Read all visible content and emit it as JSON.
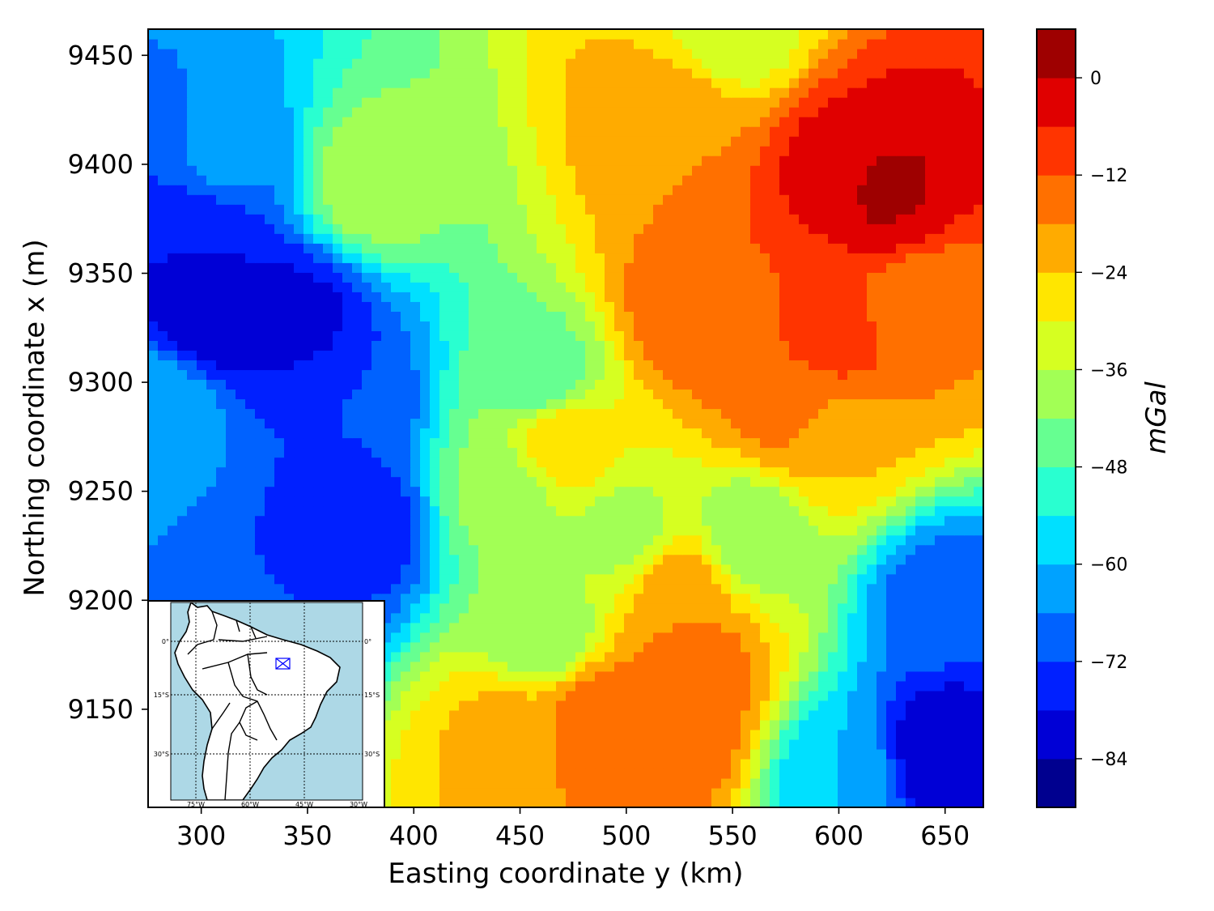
{
  "chart_data": {
    "type": "heatmap",
    "title": "",
    "xlabel": "Easting coordinate y (km)",
    "ylabel": "Northing coordinate x (m)",
    "xlim": [
      275,
      668
    ],
    "ylim": [
      9105,
      9462
    ],
    "xticks": [
      300,
      350,
      400,
      450,
      500,
      550,
      600,
      650
    ],
    "yticks": [
      9150,
      9200,
      9250,
      9300,
      9350,
      9400,
      9450
    ],
    "grid": false,
    "colorbar": {
      "label": "mGal",
      "range": [
        -90,
        6
      ],
      "levels": [
        -90,
        -84,
        -78,
        -72,
        -66,
        -60,
        -54,
        -48,
        -42,
        -36,
        -30,
        -24,
        -18,
        -12,
        -6,
        0,
        6
      ],
      "ticks": [
        -84,
        -72,
        -60,
        -48,
        -36,
        -24,
        -12,
        0
      ],
      "tick_labels": [
        "−84",
        "−72",
        "−60",
        "−48",
        "−36",
        "−24",
        "−12",
        "0"
      ],
      "colors": [
        "#00008f",
        "#0000d6",
        "#0020ff",
        "#0062ff",
        "#00a2ff",
        "#00e0ff",
        "#29ffd0",
        "#66ff91",
        "#a2ff55",
        "#d6ff21",
        "#ffe600",
        "#ffab00",
        "#ff7000",
        "#ff3400",
        "#e00000",
        "#9e0000"
      ]
    },
    "anomalies": [
      {
        "y": 380,
        "x": 9390,
        "value": -38
      },
      {
        "y": 600,
        "x": 9400,
        "value": -4
      },
      {
        "y": 620,
        "x": 9390,
        "value": 1
      },
      {
        "y": 525,
        "x": 9420,
        "value": -18
      },
      {
        "y": 440,
        "x": 9250,
        "value": -40
      },
      {
        "y": 500,
        "x": 9230,
        "value": -38
      },
      {
        "y": 345,
        "x": 9330,
        "value": -80
      },
      {
        "y": 305,
        "x": 9330,
        "value": -83
      },
      {
        "y": 300,
        "x": 9370,
        "value": -78
      },
      {
        "y": 375,
        "x": 9235,
        "value": -78
      },
      {
        "y": 350,
        "x": 9220,
        "value": -72
      },
      {
        "y": 280,
        "x": 9290,
        "value": -60
      },
      {
        "y": 310,
        "x": 9400,
        "value": -65
      },
      {
        "y": 370,
        "x": 9290,
        "value": -72
      },
      {
        "y": 570,
        "x": 9330,
        "value": -12
      },
      {
        "y": 600,
        "x": 9320,
        "value": -10
      },
      {
        "y": 530,
        "x": 9330,
        "value": -14
      },
      {
        "y": 640,
        "x": 9330,
        "value": -18
      },
      {
        "y": 580,
        "x": 9290,
        "value": -12
      },
      {
        "y": 485,
        "x": 9145,
        "value": -12
      },
      {
        "y": 525,
        "x": 9140,
        "value": -13
      },
      {
        "y": 530,
        "x": 9170,
        "value": -14
      },
      {
        "y": 525,
        "x": 9205,
        "value": -20
      },
      {
        "y": 460,
        "x": 9300,
        "value": -47
      },
      {
        "y": 650,
        "x": 9130,
        "value": -84
      },
      {
        "y": 650,
        "x": 9200,
        "value": -70
      },
      {
        "y": 600,
        "x": 9120,
        "value": -60
      },
      {
        "y": 560,
        "x": 9230,
        "value": -42
      },
      {
        "y": 470,
        "x": 9275,
        "value": -24
      },
      {
        "y": 595,
        "x": 9275,
        "value": -24
      },
      {
        "y": 445,
        "x": 9140,
        "value": -22
      },
      {
        "y": 460,
        "x": 9185,
        "value": -42
      },
      {
        "y": 550,
        "x": 9460,
        "value": -34
      }
    ],
    "inset_map": {
      "lat_labels": [
        "0°",
        "15°S",
        "30°S"
      ],
      "lon_labels": [
        "75°W",
        "60°W",
        "45°W",
        "30°W"
      ],
      "colors": {
        "ocean": "#add8e6",
        "land": "#ffffff",
        "marker": "#0000ff"
      }
    }
  }
}
